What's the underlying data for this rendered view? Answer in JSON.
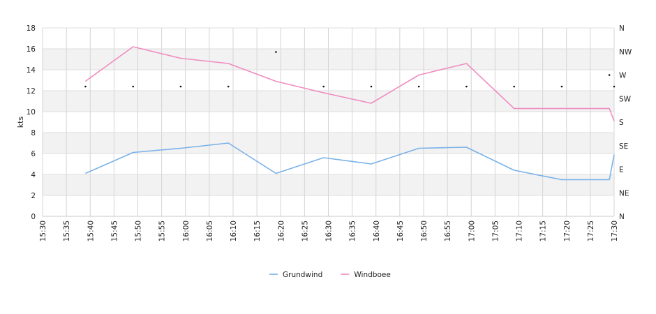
{
  "chart_data": {
    "type": "line",
    "title": "",
    "ylabel": "kts",
    "ylim": [
      0,
      18
    ],
    "yticks": [
      "0",
      "2",
      "4",
      "6",
      "8",
      "10",
      "12",
      "14",
      "16",
      "18"
    ],
    "right_axis_labels": [
      "N",
      "NE",
      "E",
      "SE",
      "S",
      "SW",
      "W",
      "NW",
      "N"
    ],
    "x_tick_labels": [
      "15:30",
      "15:35",
      "15:40",
      "15:45",
      "15:50",
      "15:55",
      "16:00",
      "16:05",
      "16:10",
      "16:15",
      "16:20",
      "16:25",
      "16:30",
      "16:35",
      "16:40",
      "16:45",
      "16:50",
      "16:55",
      "17:00",
      "17:05",
      "17:10",
      "17:15",
      "17:20",
      "17:25",
      "17:30"
    ],
    "xlim": [
      "15:30",
      "17:30"
    ],
    "grid": true,
    "legend_position": "bottom",
    "series": [
      {
        "name": "Grundwind",
        "color": "#7ab1e8",
        "x": [
          "15:39",
          "15:49",
          "15:59",
          "16:09",
          "16:19",
          "16:29",
          "16:39",
          "16:49",
          "16:59",
          "17:09",
          "17:19",
          "17:29",
          "17:30"
        ],
        "values": [
          4.1,
          6.1,
          6.5,
          7.0,
          4.1,
          5.6,
          5.0,
          6.5,
          6.6,
          4.4,
          3.5,
          3.5,
          5.9
        ]
      },
      {
        "name": "Windboee",
        "color": "#f08cc0",
        "x": [
          "15:39",
          "15:49",
          "15:59",
          "16:09",
          "16:19",
          "16:29",
          "16:39",
          "16:49",
          "16:59",
          "17:09",
          "17:19",
          "17:29",
          "17:30"
        ],
        "values": [
          12.9,
          16.2,
          15.1,
          14.6,
          12.9,
          11.8,
          10.8,
          13.5,
          14.6,
          10.3,
          10.3,
          10.3,
          9.1
        ]
      }
    ],
    "direction_markers": {
      "x": [
        "15:39",
        "15:49",
        "15:59",
        "16:09",
        "16:19",
        "16:29",
        "16:39",
        "16:49",
        "16:59",
        "17:09",
        "17:19",
        "17:29",
        "17:30"
      ],
      "values": [
        12.4,
        12.4,
        12.4,
        12.4,
        15.7,
        12.4,
        12.4,
        12.4,
        12.4,
        12.4,
        12.4,
        13.5,
        12.4
      ]
    }
  }
}
